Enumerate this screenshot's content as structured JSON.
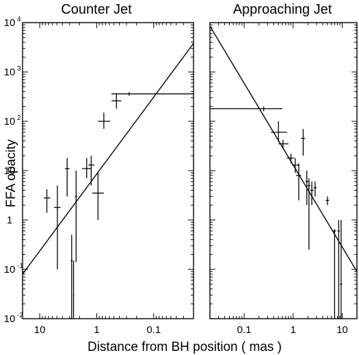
{
  "chart_data": {
    "type": "scatter",
    "ylabel": "FFA opacity",
    "xlabel": "Distance from BH position ( mas )",
    "yscale": "log",
    "xscale": "log",
    "ylim": [
      0.01,
      10000
    ],
    "grid": false,
    "y_ticks": [
      {
        "base": "10",
        "exp": "4",
        "value": 10000
      },
      {
        "base": "10",
        "exp": "3",
        "value": 1000
      },
      {
        "base": "10",
        "exp": "2",
        "value": 100
      },
      {
        "base": "10",
        "exp": "",
        "value": 10
      },
      {
        "base": "1",
        "exp": "",
        "value": 1
      },
      {
        "base": "10",
        "exp": "-1",
        "value": 0.1
      },
      {
        "base": "10",
        "exp": "-2",
        "value": 0.01
      }
    ],
    "panels": [
      {
        "title": "Counter Jet",
        "xlim": [
          20,
          0.02
        ],
        "x_ticks": [
          {
            "label": "10",
            "value": 10
          },
          {
            "label": "1",
            "value": 1
          },
          {
            "label": "0.1",
            "value": 0.1
          }
        ],
        "points": [
          {
            "x": 7.5,
            "y": 2.8,
            "xerr": [
              8.5,
              6.5
            ],
            "yerr": [
              1.4,
              4.2
            ]
          },
          {
            "x": 4.9,
            "y": 1.8,
            "xerr": [
              5.6,
              4.3
            ],
            "yerr": [
              0.1,
              5.0
            ]
          },
          {
            "x": 3.3,
            "y": 11.0,
            "xerr": [
              3.6,
              3.0
            ],
            "yerr": [
              3.0,
              18.0
            ]
          },
          {
            "x": 2.3,
            "y": 3.0,
            "xerr": [
              2.4,
              2.2
            ],
            "yerr": [
              0.14,
              10.0
            ]
          },
          {
            "x": 2.75,
            "y": 0.15,
            "xerr": [
              2.85,
              2.65
            ],
            "yerr": [
              0.01,
              0.5
            ]
          },
          {
            "x": 2.55,
            "y": 0.03,
            "xerr": [
              2.6,
              2.5
            ],
            "yerr": [
              0.01,
              0.15
            ]
          },
          {
            "x": 1.5,
            "y": 11.0,
            "xerr": [
              1.8,
              1.25
            ],
            "yerr": [
              7.0,
              18.0
            ]
          },
          {
            "x": 1.25,
            "y": 13.0,
            "xerr": [
              1.4,
              1.1
            ],
            "yerr": [
              5.0,
              20.0
            ]
          },
          {
            "x": 0.95,
            "y": 3.5,
            "xerr": [
              1.2,
              0.75
            ],
            "yerr": [
              1.0,
              9.0
            ]
          },
          {
            "x": 0.75,
            "y": 100.0,
            "xerr": [
              0.95,
              0.58
            ],
            "yerr": [
              70.0,
              150.0
            ]
          },
          {
            "x": 0.45,
            "y": 260.0,
            "xerr": [
              0.55,
              0.37
            ],
            "yerr": [
              180.0,
              360.0
            ]
          },
          {
            "x": 0.27,
            "y": 360.0,
            "xerr": [
              0.55,
              0.02
            ],
            "yerr": [
              330.0,
              390.0
            ]
          }
        ],
        "fit_line": {
          "x": [
            20,
            0.02
          ],
          "y": [
            0.08,
            3800
          ]
        }
      },
      {
        "title": "Approaching Jet",
        "xlim": [
          0.02,
          20
        ],
        "x_ticks": [
          {
            "label": "0.1",
            "value": 0.1
          },
          {
            "label": "1",
            "value": 1
          },
          {
            "label": "10",
            "value": 10
          }
        ],
        "points": [
          {
            "x": 0.25,
            "y": 180.0,
            "xerr": [
              0.02,
              0.6
            ],
            "yerr": [
              160.0,
              200.0
            ]
          },
          {
            "x": 0.5,
            "y": 60.0,
            "xerr": [
              0.35,
              0.75
            ],
            "yerr": [
              38.0,
              100.0
            ]
          },
          {
            "x": 0.62,
            "y": 35.0,
            "xerr": [
              0.5,
              0.8
            ],
            "yerr": [
              28.0,
              42.0
            ]
          },
          {
            "x": 0.9,
            "y": 18.0,
            "xerr": [
              0.75,
              1.05
            ],
            "yerr": [
              14.0,
              22.0
            ]
          },
          {
            "x": 1.1,
            "y": 13.0,
            "xerr": [
              0.95,
              1.3
            ],
            "yerr": [
              9.0,
              18.0
            ]
          },
          {
            "x": 1.3,
            "y": 8.0,
            "xerr": [
              1.15,
              1.45
            ],
            "yerr": [
              2.5,
              14.0
            ]
          },
          {
            "x": 1.6,
            "y": 45.0,
            "xerr": [
              1.45,
              1.75
            ],
            "yerr": [
              20.0,
              70.0
            ]
          },
          {
            "x": 1.9,
            "y": 6.0,
            "xerr": [
              1.75,
              2.05
            ],
            "yerr": [
              2.0,
              10.0
            ]
          },
          {
            "x": 2.1,
            "y": 5.0,
            "xerr": [
              1.95,
              2.25
            ],
            "yerr": [
              0.25,
              7.0
            ]
          },
          {
            "x": 2.4,
            "y": 4.0,
            "xerr": [
              2.25,
              2.6
            ],
            "yerr": [
              2.0,
              6.0
            ]
          },
          {
            "x": 2.8,
            "y": 4.5,
            "xerr": [
              2.6,
              3.0
            ],
            "yerr": [
              3.0,
              6.0
            ]
          },
          {
            "x": 5.0,
            "y": 2.5,
            "xerr": [
              4.6,
              5.4
            ],
            "yerr": [
              2.0,
              3.0
            ]
          },
          {
            "x": 7.0,
            "y": 0.6,
            "xerr": [
              6.5,
              7.5
            ],
            "yerr": [
              0.01,
              0.65
            ]
          },
          {
            "x": 8.5,
            "y": 0.6,
            "xerr": [
              8.0,
              9.0
            ],
            "yerr": [
              0.01,
              1.0
            ]
          },
          {
            "x": 9.5,
            "y": 0.05,
            "xerr": [
              9.0,
              10.0
            ],
            "yerr": [
              0.01,
              1.0
            ]
          }
        ],
        "fit_line": {
          "x": [
            0.02,
            20
          ],
          "y": [
            8500,
            0.09
          ]
        }
      }
    ]
  }
}
